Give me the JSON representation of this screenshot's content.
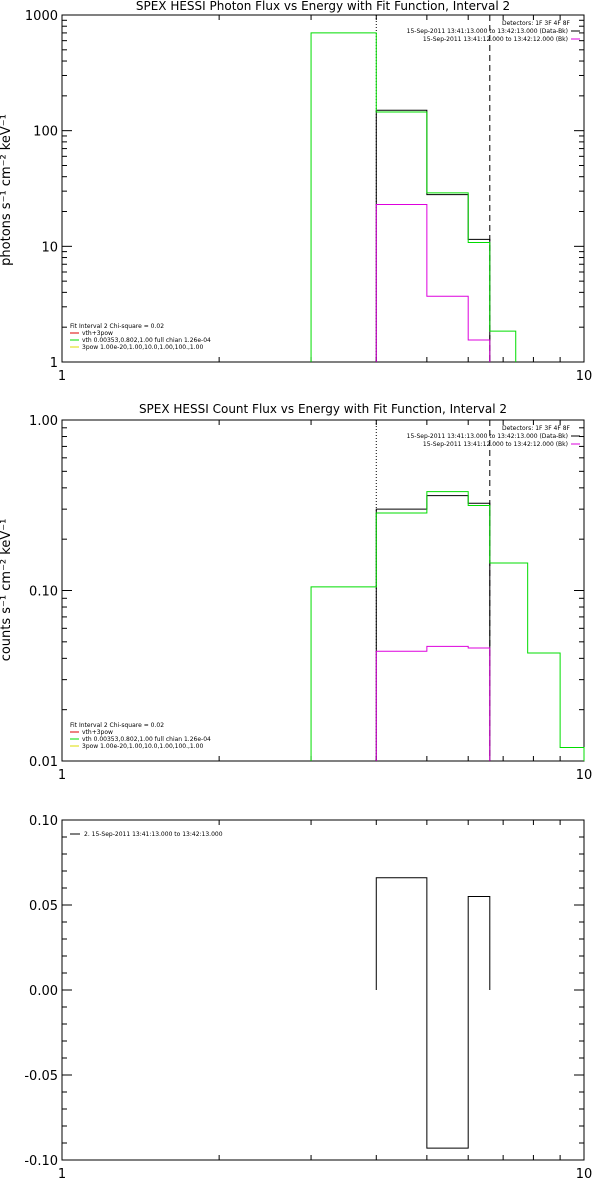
{
  "chart_data": [
    {
      "type": "line",
      "title": "SPEX HESSI Photon Flux vs Energy with Fit Function, Interval 2",
      "xlabel": "",
      "ylabel": "photons s⁻¹ cm⁻² keV⁻¹",
      "xscale": "log",
      "yscale": "log",
      "xlim": [
        1,
        10
      ],
      "ylim": [
        1,
        1000
      ],
      "xticks": [
        "1",
        "10"
      ],
      "yticks": [
        "1",
        "10",
        "100",
        "1000"
      ],
      "grid": false,
      "vlines": [
        {
          "x": 4.0,
          "style": "dotted"
        },
        {
          "x": 6.6,
          "style": "dashed"
        }
      ],
      "series": [
        {
          "color": "#000000",
          "bins": [
            [
              4.0,
              5.0,
              150
            ],
            [
              5.0,
              6.0,
              28
            ],
            [
              6.0,
              6.6,
              11.5
            ]
          ]
        },
        {
          "color": "#00dd00",
          "bins": [
            [
              3.0,
              4.0,
              700
            ],
            [
              4.0,
              5.0,
              145
            ],
            [
              5.0,
              6.0,
              29
            ],
            [
              6.0,
              6.6,
              10.8
            ],
            [
              6.6,
              7.4,
              1.85
            ]
          ]
        },
        {
          "color": "#dd00dd",
          "bins": [
            [
              4.0,
              5.0,
              23
            ],
            [
              5.0,
              6.0,
              3.7
            ],
            [
              6.0,
              6.6,
              1.55
            ]
          ]
        }
      ],
      "legend_top": {
        "header": "Detectors: 1F 3F 4F 8F",
        "entries": [
          {
            "label": "15-Sep-2011 13:41:13.000 to 13:42:13.000 (Data-Bk)",
            "color": "#000000"
          },
          {
            "label": "15-Sep-2011 13:41:12.000 to 13:42:12.000 (Bk)",
            "color": "#dd00dd"
          }
        ]
      },
      "legend_bottom": {
        "header": "Fit Interval 2   Chi-square = 0.02",
        "entries": [
          {
            "label": "vth+3pow",
            "color": "#dd0000"
          },
          {
            "label": "vth 0.00353,0.802,1.00  full chian 1.26e-04",
            "color": "#00dd00"
          },
          {
            "label": "3pow 1.00e-20,1.00,10.0,1.00,100.,1.00",
            "color": "#dddd00"
          }
        ]
      }
    },
    {
      "type": "line",
      "title": "SPEX HESSI Count Flux vs Energy with Fit Function, Interval 2",
      "xlabel": "",
      "ylabel": "counts s⁻¹ cm⁻² keV⁻¹",
      "xscale": "log",
      "yscale": "log",
      "xlim": [
        1,
        10
      ],
      "ylim": [
        0.01,
        1.0
      ],
      "xticks": [
        "1",
        "10"
      ],
      "yticks": [
        "0.01",
        "0.10",
        "1.00"
      ],
      "grid": false,
      "vlines": [
        {
          "x": 4.0,
          "style": "dotted"
        },
        {
          "x": 6.6,
          "style": "dashed"
        }
      ],
      "series": [
        {
          "color": "#000000",
          "bins": [
            [
              4.0,
              5.0,
              0.3
            ],
            [
              5.0,
              6.0,
              0.36
            ],
            [
              6.0,
              6.6,
              0.325
            ]
          ]
        },
        {
          "color": "#00dd00",
          "bins": [
            [
              3.0,
              4.0,
              0.105
            ],
            [
              4.0,
              5.0,
              0.285
            ],
            [
              5.0,
              6.0,
              0.38
            ],
            [
              6.0,
              6.6,
              0.315
            ],
            [
              6.6,
              7.8,
              0.145
            ],
            [
              7.8,
              9.0,
              0.043
            ],
            [
              9.0,
              10.0,
              0.012
            ]
          ]
        },
        {
          "color": "#dd00dd",
          "bins": [
            [
              4.0,
              5.0,
              0.044
            ],
            [
              5.0,
              6.0,
              0.047
            ],
            [
              6.0,
              6.6,
              0.046
            ]
          ]
        }
      ],
      "legend_top": {
        "header": "Detectors: 1F 3F 4F 8F",
        "entries": [
          {
            "label": "15-Sep-2011 13:41:13.000 to 13:42:13.000 (Data-Bk)",
            "color": "#000000"
          },
          {
            "label": "15-Sep-2011 13:41:12.000 to 13:42:12.000 (Bk)",
            "color": "#dd00dd"
          }
        ]
      },
      "legend_bottom": {
        "header": "Fit Interval 2   Chi-square = 0.02",
        "entries": [
          {
            "label": "vth+3pow",
            "color": "#dd0000"
          },
          {
            "label": "vth 0.00353,0.802,1.00  full chian 1.26e-04",
            "color": "#00dd00"
          },
          {
            "label": "3pow 1.00e-20,1.00,10.0,1.00,100.,1.00",
            "color": "#dddd00"
          }
        ]
      }
    },
    {
      "type": "line",
      "title": "",
      "xlabel": "",
      "ylabel": "",
      "xscale": "log",
      "yscale": "linear",
      "xlim": [
        1,
        10
      ],
      "ylim": [
        -0.1,
        0.1
      ],
      "xticks": [
        "1",
        "10"
      ],
      "yticks": [
        "-0.10",
        "-0.05",
        "0.00",
        "0.05",
        "0.10"
      ],
      "grid": false,
      "series": [
        {
          "color": "#000000",
          "bins": [
            [
              4.0,
              5.0,
              0.066
            ],
            [
              5.0,
              6.0,
              -0.093
            ],
            [
              6.0,
              6.6,
              0.055
            ]
          ]
        }
      ],
      "legend_top_left": {
        "entries": [
          {
            "label": "2. 15-Sep-2011 13:41:13.000 to 13:42:13.000",
            "color": "#000000"
          }
        ]
      }
    }
  ]
}
